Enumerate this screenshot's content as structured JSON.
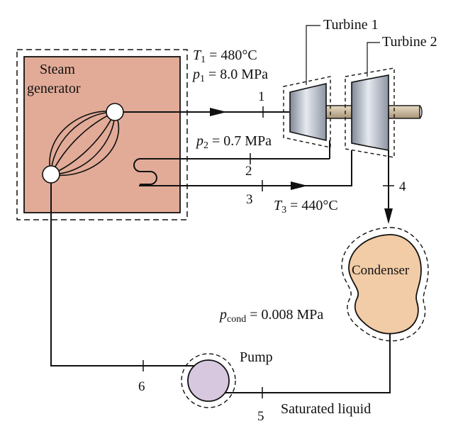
{
  "steam_generator": {
    "line1": "Steam",
    "line2": "generator"
  },
  "turbine1": {
    "label": "Turbine 1"
  },
  "turbine2": {
    "label": "Turbine 2"
  },
  "state1": {
    "t_sym": "T",
    "t_sub": "1",
    "t_val": " = 480°C",
    "p_sym": "p",
    "p_sub": "1",
    "p_val": " = 8.0 MPa"
  },
  "state2": {
    "p_sym": "p",
    "p_sub": "2",
    "p_val": " = 0.7 MPa"
  },
  "state3": {
    "t_sym": "T",
    "t_sub": "3",
    "t_val": " = 440°C"
  },
  "condenser": {
    "label": "Condenser",
    "p_sym": "p",
    "p_sub": "cond",
    "p_val": " = 0.008 MPa"
  },
  "pump": {
    "label": "Pump"
  },
  "saturated": {
    "label": "Saturated liquid"
  },
  "state_numbers": {
    "n1": "1",
    "n2": "2",
    "n3": "3",
    "n4": "4",
    "n5": "5",
    "n6": "6"
  },
  "colors": {
    "generator_fill": "#e2ab98",
    "condenser_fill": "#f1cca7",
    "pump_fill": "#d7c8e0",
    "turbine_metal": "#aeb6c2",
    "shaft": "#c8b89a",
    "line": "#111111"
  }
}
